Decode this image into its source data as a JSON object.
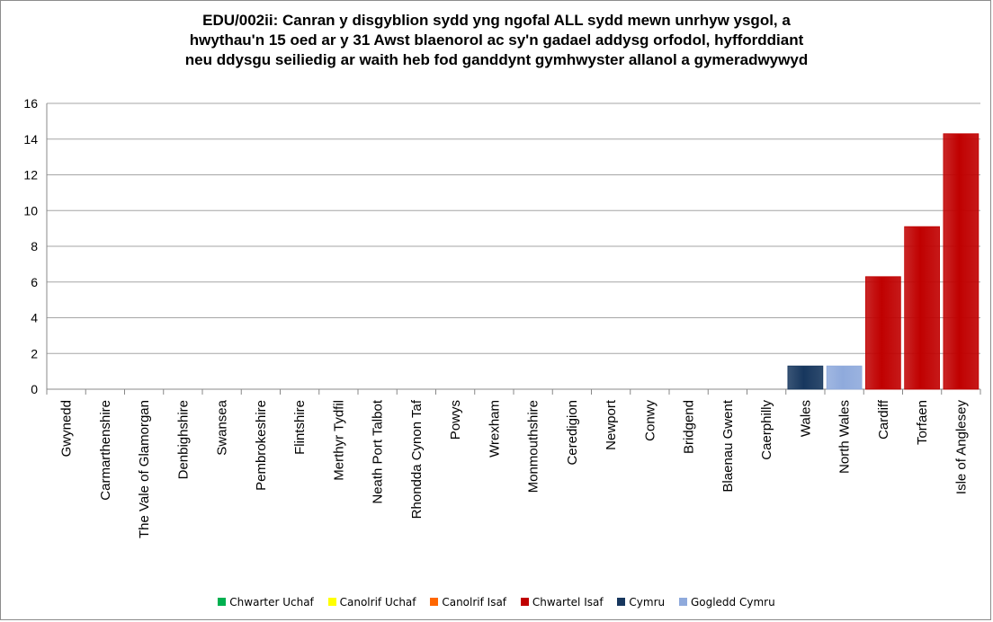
{
  "chart_data": {
    "type": "bar",
    "title_lines": [
      "EDU/002ii: Canran y disgyblion sydd yng ngofal ALL sydd mewn unrhyw ysgol, a",
      "hwythau'n 15 oed ar y 31 Awst blaenorol ac sy'n gadael addysg orfodol, hyfforddiant",
      "neu ddysgu seiliedig ar waith heb fod ganddynt gymhwyster allanol a gymeradwywyd"
    ],
    "categories": [
      "Gwynedd",
      "Carmarthenshire",
      "The Vale of Glamorgan",
      "Denbighshire",
      "Swansea",
      "Pembrokeshire",
      "Flintshire",
      "Merthyr Tydfil",
      "Neath Port Talbot",
      "Rhondda Cynon Taf",
      "Powys",
      "Wrexham",
      "Monmouthshire",
      "Ceredigion",
      "Newport",
      "Conwy",
      "Bridgend",
      "Blaenau Gwent",
      "Caerphilly",
      "Wales",
      "North Wales",
      "Cardiff",
      "Torfaen",
      "Isle of Anglesey"
    ],
    "values": [
      0,
      0,
      0,
      0,
      0,
      0,
      0,
      0,
      0,
      0,
      0,
      0,
      0,
      0,
      0,
      0,
      0,
      0,
      0,
      1.3,
      1.3,
      6.3,
      9.1,
      14.3
    ],
    "bar_groups": [
      "",
      "",
      "",
      "",
      "",
      "",
      "",
      "",
      "",
      "",
      "",
      "",
      "",
      "",
      "",
      "",
      "",
      "",
      "",
      "Cymru",
      "Gogledd Cymru",
      "Chwartel Isaf",
      "Chwartel Isaf",
      "Chwartel Isaf"
    ],
    "ylim": [
      0,
      16
    ],
    "yticks": [
      0,
      2,
      4,
      6,
      8,
      10,
      12,
      14,
      16
    ],
    "grid": true,
    "legend_position": "bottom",
    "legend": [
      {
        "name": "Chwarter Uchaf",
        "color": "#00b050"
      },
      {
        "name": "Canolrif Uchaf",
        "color": "#ffff00"
      },
      {
        "name": "Canolrif Isaf",
        "color": "#ff6600"
      },
      {
        "name": "Chwartel Isaf",
        "color": "#c00000"
      },
      {
        "name": "Cymru",
        "color": "#17375e"
      },
      {
        "name": "Gogledd Cymru",
        "color": "#8faadc"
      }
    ]
  }
}
